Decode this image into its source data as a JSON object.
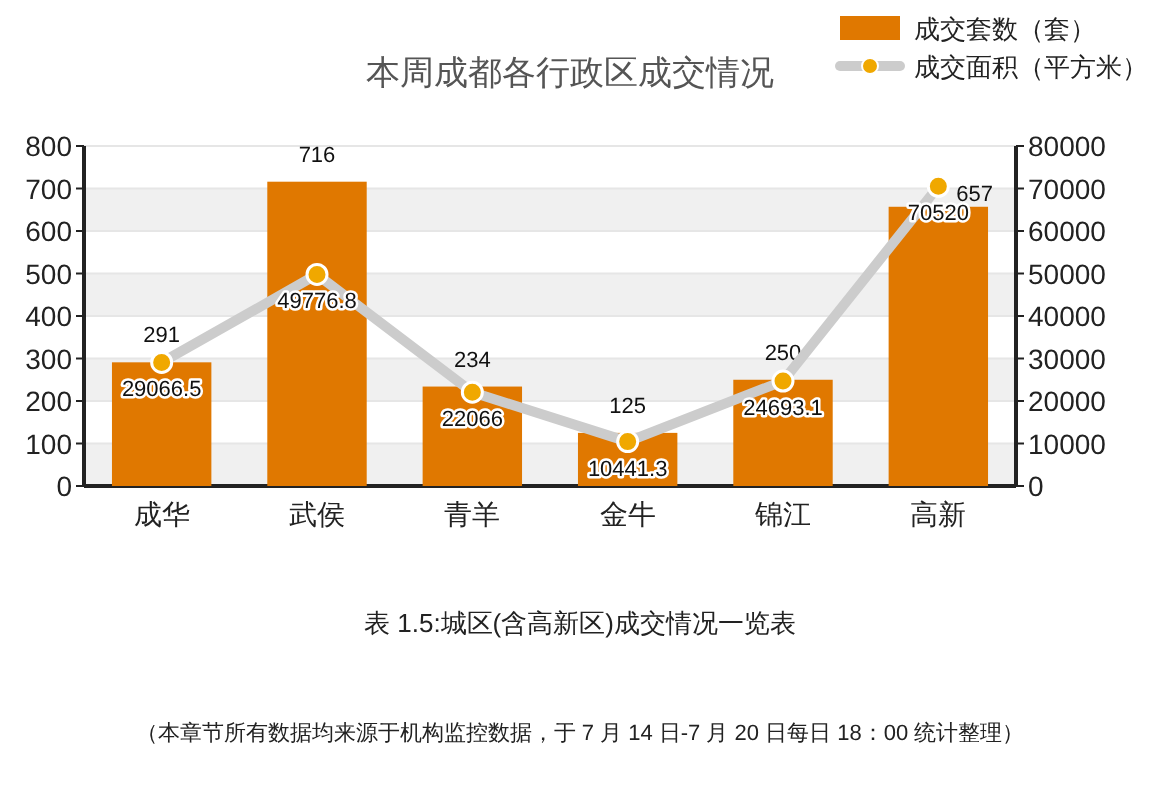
{
  "chart_data": {
    "type": "bar",
    "title": "本周成都各行政区成交情况",
    "categories": [
      "成华",
      "武侯",
      "青羊",
      "金牛",
      "锦江",
      "高新"
    ],
    "series": [
      {
        "name": "成交套数（套）",
        "color": "#e07800",
        "values": [
          291,
          716,
          234,
          125,
          250,
          657
        ]
      },
      {
        "name": "成交面积（平方米）",
        "type": "line",
        "axis": "y2",
        "color": "#cccccc",
        "marker": "circle",
        "values": [
          29066.5,
          49776.8,
          22066,
          10441.3,
          24693.1,
          70520
        ]
      }
    ],
    "data_labels": true,
    "ylim": [
      0,
      800
    ],
    "yticks": [
      0,
      100,
      200,
      300,
      400,
      500,
      600,
      700,
      800
    ],
    "y2lim": [
      0,
      80000
    ],
    "y2ticks": [
      0,
      10000,
      20000,
      30000,
      40000,
      50000,
      60000,
      70000,
      80000
    ],
    "grid": "y",
    "legend": "top right",
    "annotations": [
      "表 1.5:城区(含高新区)成交情况一览表",
      "（本章节所有数据均来源于机构监控数据，于 7 月 14 日-7 月 20 日每日 18：00 统计整理）"
    ]
  }
}
